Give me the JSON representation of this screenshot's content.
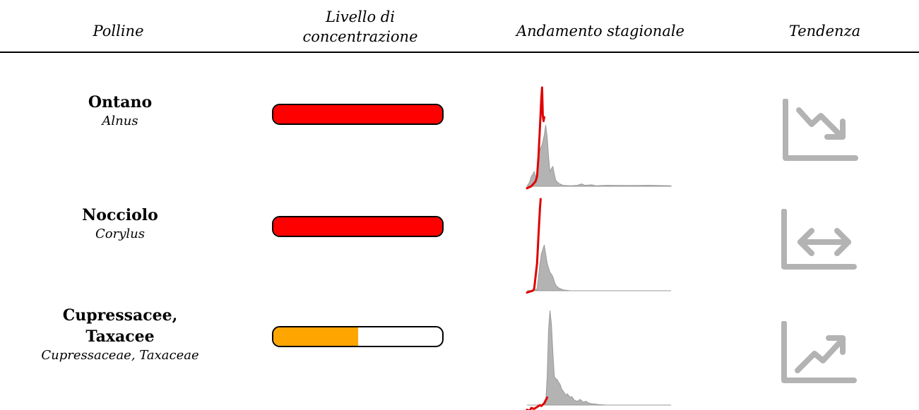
{
  "header": {
    "polline": "Polline",
    "livello_line1": "Livello di",
    "livello_line2": "concentrazione",
    "andamento": "Andamento stagionale",
    "tendenza": "Tendenza"
  },
  "colors": {
    "high": "#ff0000",
    "medium": "#ffa500",
    "season": "#b3b3b3",
    "current": "#e00000",
    "trend_icon": "#b3b3b3"
  },
  "rows": [
    {
      "common_name": [
        "Ontano"
      ],
      "latin_name": "Alnus",
      "level": 1.0,
      "level_color": "#ff0000",
      "trend": "down",
      "trend_icon": "trending-down-icon"
    },
    {
      "common_name": [
        "Nocciolo"
      ],
      "latin_name": "Corylus",
      "level": 1.0,
      "level_color": "#ff0000",
      "trend": "stable",
      "trend_icon": "trending-flat-icon"
    },
    {
      "common_name": [
        "Cupressacee,",
        "Taxacee"
      ],
      "latin_name": "Cupressaceae, Taxaceae",
      "level": 0.5,
      "level_color": "#ffa500",
      "trend": "up",
      "trend_icon": "trending-up-icon"
    }
  ],
  "chart_data": {
    "type": "area",
    "x_range": [
      0,
      100
    ],
    "y_range": [
      0,
      1
    ],
    "series": [
      {
        "season": [
          [
            0,
            0
          ],
          [
            1,
            0.02
          ],
          [
            2,
            0.05
          ],
          [
            3,
            0.1
          ],
          [
            4,
            0.12
          ],
          [
            5,
            0.15
          ],
          [
            6,
            0.1
          ],
          [
            7,
            0.12
          ],
          [
            8,
            0.3
          ],
          [
            9,
            0.38
          ],
          [
            10,
            0.4
          ],
          [
            11,
            0.45
          ],
          [
            12,
            0.52
          ],
          [
            13,
            0.62
          ],
          [
            14,
            0.5
          ],
          [
            15,
            0.3
          ],
          [
            16,
            0.15
          ],
          [
            17,
            0.18
          ],
          [
            18,
            0.2
          ],
          [
            19,
            0.12
          ],
          [
            20,
            0.06
          ],
          [
            22,
            0.03
          ],
          [
            25,
            0.01
          ],
          [
            30,
            0.005
          ],
          [
            35,
            0.01
          ],
          [
            38,
            0.025
          ],
          [
            40,
            0.01
          ],
          [
            45,
            0.015
          ],
          [
            48,
            0.005
          ],
          [
            55,
            0.01
          ],
          [
            70,
            0.008
          ],
          [
            85,
            0.01
          ],
          [
            100,
            0.005
          ]
        ],
        "current": [
          [
            0,
            -0.02
          ],
          [
            3,
            0
          ],
          [
            6,
            0.05
          ],
          [
            7,
            0.1
          ],
          [
            8,
            0.3
          ],
          [
            9,
            0.6
          ],
          [
            10,
            0.9
          ],
          [
            10.5,
            1.0
          ],
          [
            11,
            0.72
          ],
          [
            11.5,
            0.66
          ],
          [
            12,
            0.7
          ]
        ]
      },
      {
        "season": [
          [
            0,
            0
          ],
          [
            4,
            0.005
          ],
          [
            6,
            0.01
          ],
          [
            7,
            0.02
          ],
          [
            8,
            0.15
          ],
          [
            9,
            0.3
          ],
          [
            10,
            0.4
          ],
          [
            11,
            0.45
          ],
          [
            12,
            0.5
          ],
          [
            13,
            0.4
          ],
          [
            14,
            0.3
          ],
          [
            15,
            0.25
          ],
          [
            16,
            0.2
          ],
          [
            17,
            0.18
          ],
          [
            18,
            0.15
          ],
          [
            19,
            0.1
          ],
          [
            20,
            0.06
          ],
          [
            22,
            0.03
          ],
          [
            25,
            0.01
          ],
          [
            30,
            0
          ],
          [
            100,
            0
          ]
        ],
        "current": [
          [
            0,
            -0.02
          ],
          [
            4,
            0
          ],
          [
            5,
            0.02
          ],
          [
            7,
            0.3
          ],
          [
            8,
            0.6
          ],
          [
            9,
            0.9
          ],
          [
            9.5,
            1.0
          ]
        ]
      },
      {
        "season": [
          [
            0,
            0
          ],
          [
            10,
            0
          ],
          [
            13,
            0.02
          ],
          [
            14,
            0.3
          ],
          [
            15,
            0.8
          ],
          [
            16,
            1.0
          ],
          [
            17,
            0.85
          ],
          [
            18,
            0.55
          ],
          [
            19,
            0.3
          ],
          [
            20,
            0.28
          ],
          [
            21,
            0.27
          ],
          [
            22,
            0.24
          ],
          [
            23,
            0.22
          ],
          [
            24,
            0.17
          ],
          [
            25,
            0.15
          ],
          [
            26,
            0.13
          ],
          [
            27,
            0.1
          ],
          [
            28,
            0.12
          ],
          [
            29,
            0.1
          ],
          [
            30,
            0.08
          ],
          [
            31,
            0.09
          ],
          [
            32,
            0.07
          ],
          [
            33,
            0.05
          ],
          [
            35,
            0.04
          ],
          [
            37,
            0.06
          ],
          [
            39,
            0.03
          ],
          [
            41,
            0.04
          ],
          [
            43,
            0.02
          ],
          [
            45,
            0.015
          ],
          [
            50,
            0.005
          ],
          [
            55,
            0
          ],
          [
            100,
            0
          ]
        ],
        "current": [
          [
            0,
            -0.05
          ],
          [
            2,
            -0.06
          ],
          [
            3,
            -0.03
          ],
          [
            5,
            -0.04
          ],
          [
            7,
            -0.02
          ],
          [
            9,
            0
          ],
          [
            10,
            -0.01
          ],
          [
            12,
            0.02
          ],
          [
            13,
            0.05
          ],
          [
            14,
            0.08
          ]
        ]
      }
    ]
  }
}
